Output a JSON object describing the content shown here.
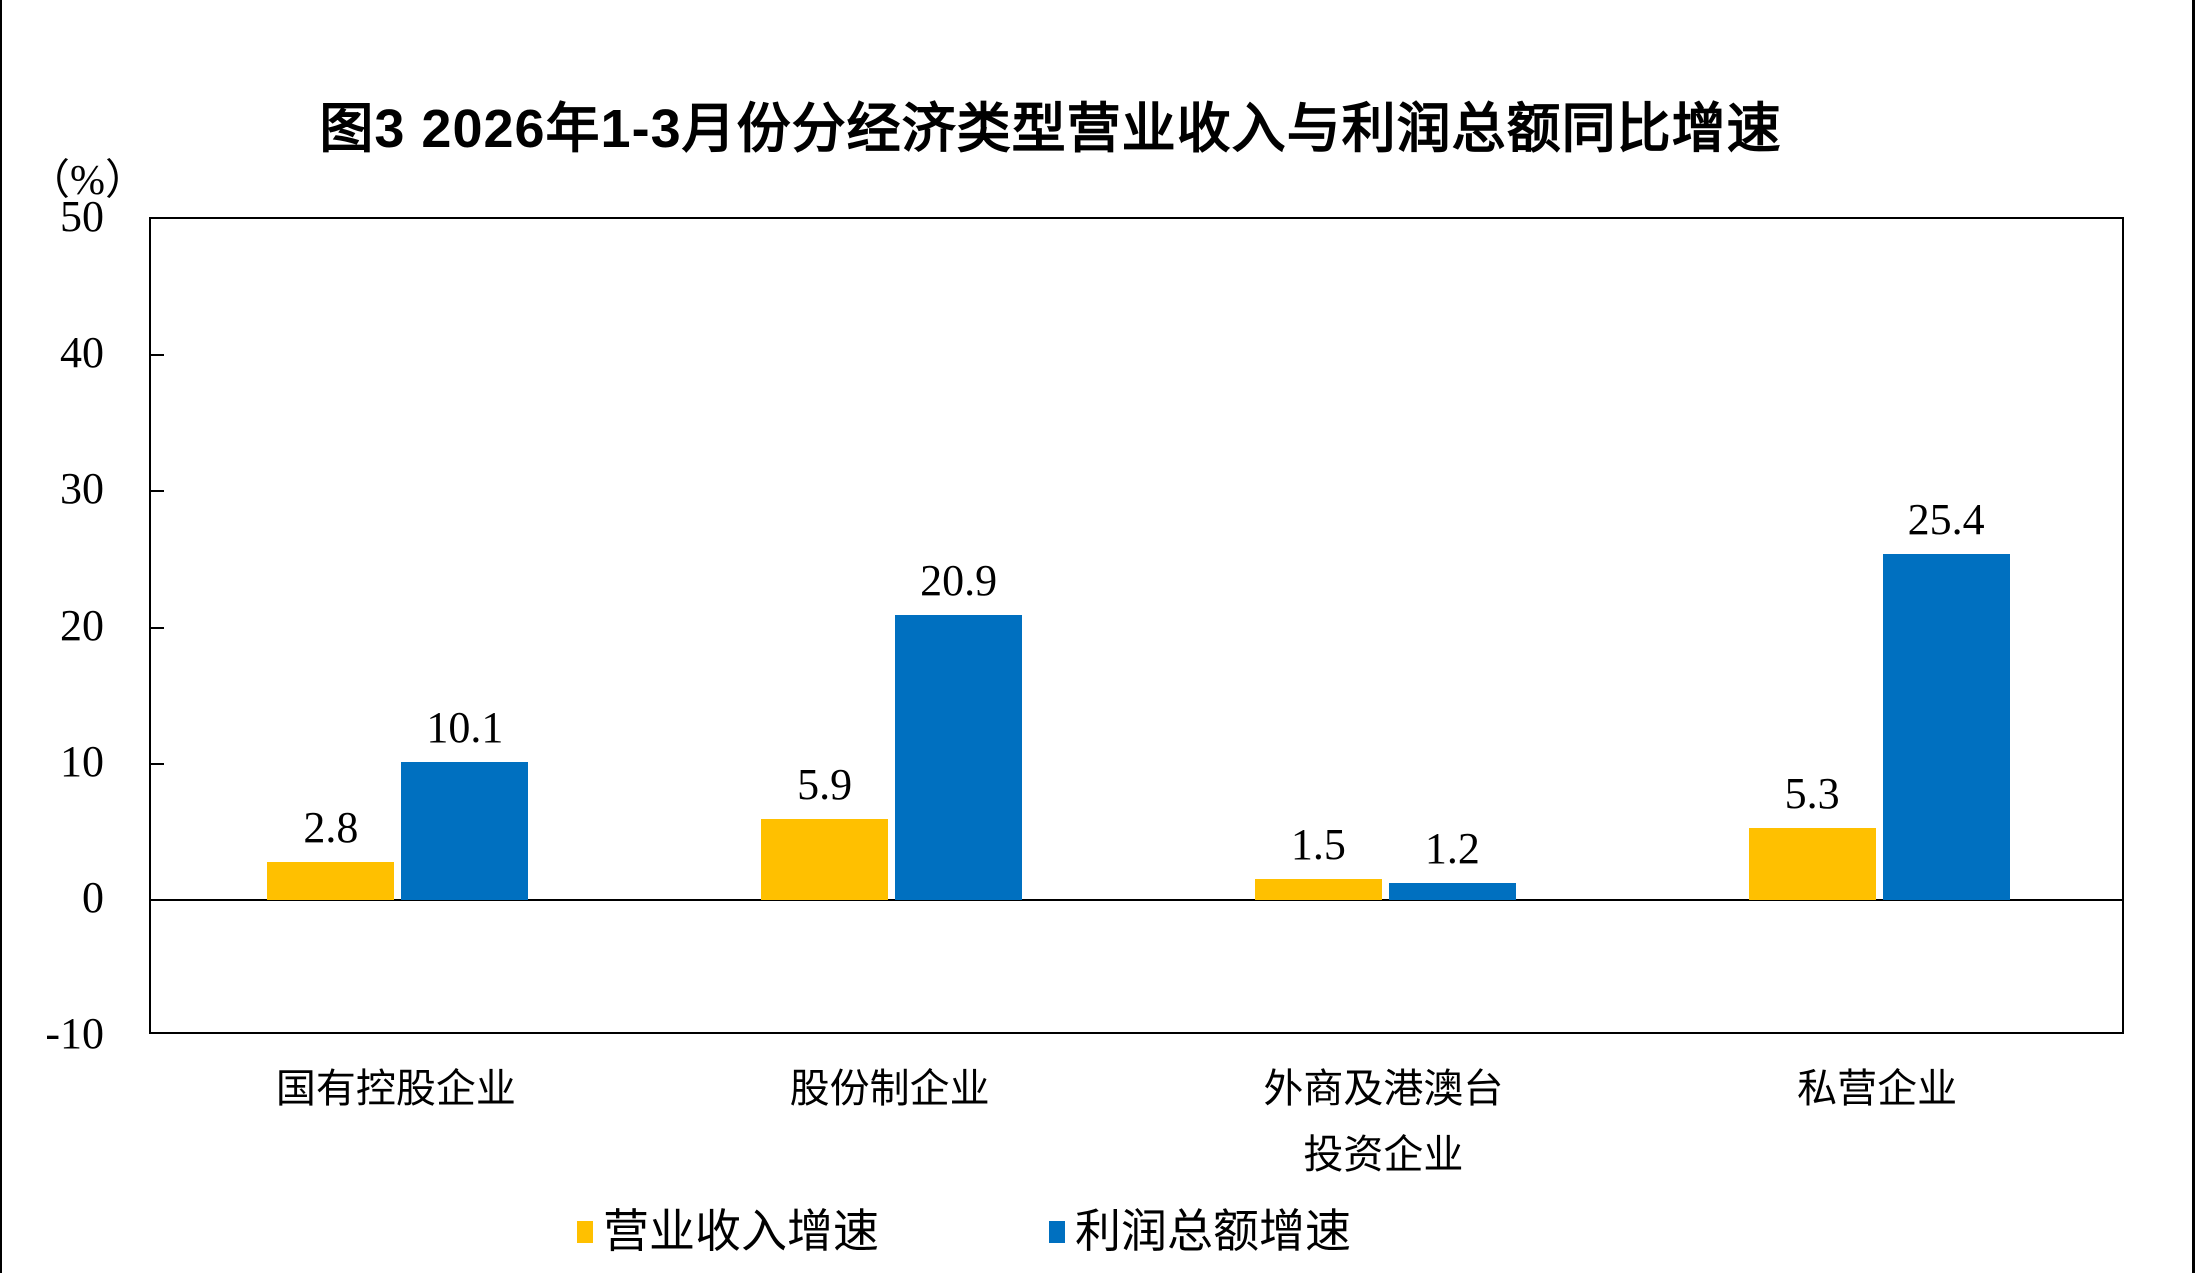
{
  "chart_data": {
    "type": "bar",
    "title": "图3 2026年1-3月份分经济类型营业收入与利润总额同比增速",
    "unit_label": "（%）",
    "categories": [
      "国有控股企业",
      "股份制企业",
      "外商及港澳台\n投资企业",
      "私营企业"
    ],
    "series": [
      {
        "name": "营业收入增速",
        "color": "#FFC000",
        "values": [
          2.8,
          5.9,
          1.5,
          5.3
        ]
      },
      {
        "name": "利润总额增速",
        "color": "#0070C0",
        "values": [
          10.1,
          20.9,
          1.2,
          25.4
        ]
      }
    ],
    "ylim": [
      -10,
      50
    ],
    "yticks": [
      50,
      40,
      30,
      20,
      10,
      0,
      -10
    ],
    "grid": false,
    "legend_position": "bottom",
    "value_labels_shown": true,
    "axis_color": "#000000",
    "background_color": "#ffffff"
  }
}
